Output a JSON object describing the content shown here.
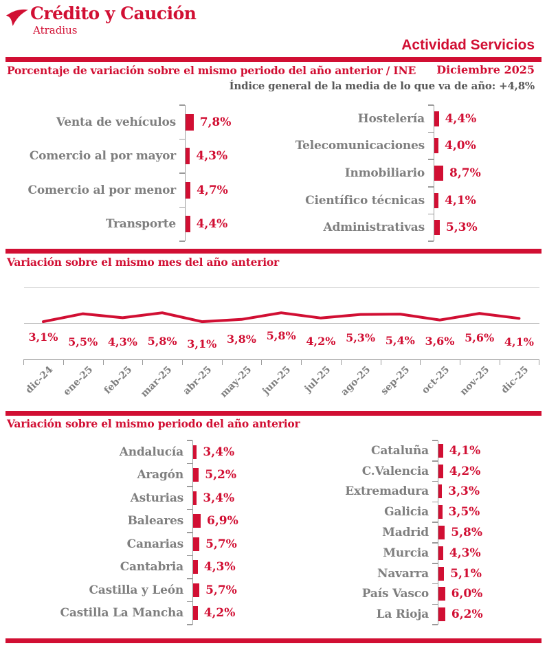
{
  "colors": {
    "brand_red": "#d10f33",
    "label_gray": "#7f7f7f",
    "subtitle_gray": "#595959",
    "axis_gray": "#9a9a9a",
    "gridline_light": "#dcdcdc",
    "gridline_mid": "#b3b3b3"
  },
  "header": {
    "brand": "Crédito y Caución",
    "brand_sub": "Atradius",
    "page_title": "Actividad Servicios",
    "period": "Diciembre 2025",
    "index_note": "Índice general de la media de lo que va de año:  +4,8%"
  },
  "chart_data": [
    {
      "type": "bar",
      "orientation": "horizontal",
      "title": "Porcentaje de variación sobre el mismo periodo del año anterior / INE",
      "unit": "%",
      "groups": [
        {
          "categories": [
            "Venta de vehículos",
            "Comercio al por mayor",
            "Comercio al por menor",
            "Transporte"
          ],
          "values": [
            7.8,
            4.3,
            4.7,
            4.4
          ],
          "labels": [
            "7,8%",
            "4,3%",
            "4,7%",
            "4,4%"
          ]
        },
        {
          "categories": [
            "Hostelería",
            "Telecomunicaciones",
            "Inmobiliario",
            "Científico técnicas",
            "Administrativas"
          ],
          "values": [
            4.4,
            4.0,
            8.7,
            4.1,
            5.3
          ],
          "labels": [
            "4,4%",
            "4,0%",
            "8,7%",
            "4,1%",
            "5,3%"
          ]
        }
      ]
    },
    {
      "type": "line",
      "title": "Variación sobre el mismo mes del año anterior",
      "unit": "%",
      "x": [
        "dic-24",
        "ene-25",
        "feb-25",
        "mar-25",
        "abr-25",
        "may-25",
        "jun-25",
        "jul-25",
        "ago-25",
        "sep-25",
        "oct-25",
        "nov-25",
        "dic-25"
      ],
      "values": [
        3.1,
        5.5,
        4.3,
        5.8,
        3.1,
        3.8,
        5.8,
        4.2,
        5.3,
        5.4,
        3.6,
        5.6,
        4.1
      ],
      "labels": [
        "3,1%",
        "5,5%",
        "4,3%",
        "5,8%",
        "3,1%",
        "3,8%",
        "5,8%",
        "4,2%",
        "5,3%",
        "5,4%",
        "3,6%",
        "5,6%",
        "4,1%"
      ],
      "grid": "horizontal-lines",
      "legend": "none"
    },
    {
      "type": "bar",
      "orientation": "horizontal",
      "title": "Variación sobre el mismo periodo del año anterior",
      "unit": "%",
      "groups": [
        {
          "categories": [
            "Andalucía",
            "Aragón",
            "Asturias",
            "Baleares",
            "Canarias",
            "Cantabria",
            "Castilla y León",
            "Castilla La Mancha"
          ],
          "values": [
            3.4,
            5.2,
            3.4,
            6.9,
            5.7,
            4.3,
            5.7,
            4.2
          ],
          "labels": [
            "3,4%",
            "5,2%",
            "3,4%",
            "6,9%",
            "5,7%",
            "4,3%",
            "5,7%",
            "4,2%"
          ]
        },
        {
          "categories": [
            "Cataluña",
            "C.Valencia",
            "Extremadura",
            "Galicia",
            "Madrid",
            "Murcia",
            "Navarra",
            "País Vasco",
            "La Rioja"
          ],
          "values": [
            4.1,
            4.2,
            3.3,
            3.5,
            5.8,
            4.3,
            5.1,
            6.0,
            6.2
          ],
          "labels": [
            "4,1%",
            "4,2%",
            "3,3%",
            "3,5%",
            "5,8%",
            "4,3%",
            "5,1%",
            "6,0%",
            "6,2%"
          ]
        }
      ]
    }
  ]
}
